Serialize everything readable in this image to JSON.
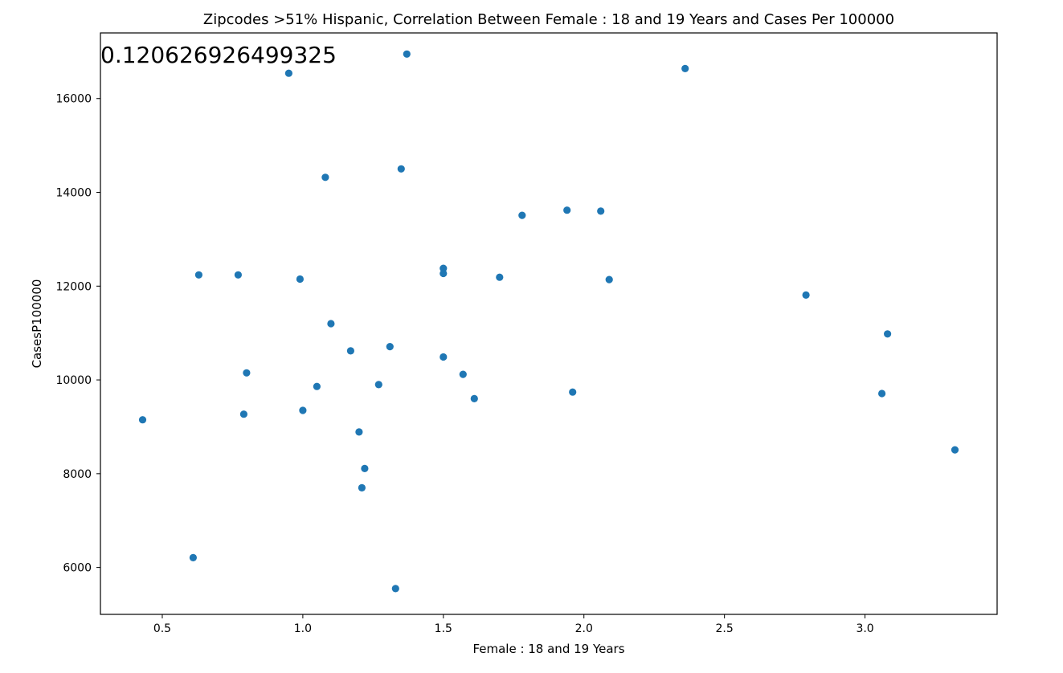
{
  "chart_data": {
    "type": "scatter",
    "title": "Zipcodes >51% Hispanic, Correlation Between Female : 18 and 19 Years and Cases Per 100000",
    "annotation": "0.120626926499325",
    "xlabel": "Female : 18 and 19 Years",
    "ylabel": "CasesP100000",
    "xlim": [
      0.28,
      3.47
    ],
    "ylim": [
      5000,
      17400
    ],
    "xticks": [
      0.5,
      1.0,
      1.5,
      2.0,
      2.5,
      3.0
    ],
    "xtick_labels": [
      "0.5",
      "1.0",
      "1.5",
      "2.0",
      "2.5",
      "3.0"
    ],
    "yticks": [
      6000,
      8000,
      10000,
      12000,
      14000,
      16000
    ],
    "ytick_labels": [
      "6000",
      "8000",
      "10000",
      "12000",
      "14000",
      "16000"
    ],
    "grid": false,
    "marker_color": "#1f77b4",
    "points": [
      {
        "x": 0.43,
        "y": 9150
      },
      {
        "x": 0.61,
        "y": 6210
      },
      {
        "x": 0.63,
        "y": 12240
      },
      {
        "x": 0.77,
        "y": 12240
      },
      {
        "x": 0.79,
        "y": 9270
      },
      {
        "x": 0.8,
        "y": 10150
      },
      {
        "x": 0.95,
        "y": 16540
      },
      {
        "x": 0.99,
        "y": 12150
      },
      {
        "x": 1.0,
        "y": 9350
      },
      {
        "x": 1.05,
        "y": 9860
      },
      {
        "x": 1.08,
        "y": 14320
      },
      {
        "x": 1.1,
        "y": 11200
      },
      {
        "x": 1.17,
        "y": 10620
      },
      {
        "x": 1.2,
        "y": 8890
      },
      {
        "x": 1.21,
        "y": 7700
      },
      {
        "x": 1.22,
        "y": 8110
      },
      {
        "x": 1.27,
        "y": 9900
      },
      {
        "x": 1.31,
        "y": 10710
      },
      {
        "x": 1.33,
        "y": 5550
      },
      {
        "x": 1.35,
        "y": 14500
      },
      {
        "x": 1.37,
        "y": 16950
      },
      {
        "x": 1.5,
        "y": 12380
      },
      {
        "x": 1.5,
        "y": 10490
      },
      {
        "x": 1.5,
        "y": 12270
      },
      {
        "x": 1.57,
        "y": 10120
      },
      {
        "x": 1.61,
        "y": 9600
      },
      {
        "x": 1.7,
        "y": 12190
      },
      {
        "x": 1.78,
        "y": 13510
      },
      {
        "x": 1.94,
        "y": 13620
      },
      {
        "x": 1.96,
        "y": 9740
      },
      {
        "x": 2.06,
        "y": 13600
      },
      {
        "x": 2.09,
        "y": 12140
      },
      {
        "x": 2.36,
        "y": 16640
      },
      {
        "x": 2.79,
        "y": 11810
      },
      {
        "x": 3.06,
        "y": 9710
      },
      {
        "x": 3.08,
        "y": 10980
      },
      {
        "x": 3.32,
        "y": 8510
      }
    ]
  }
}
